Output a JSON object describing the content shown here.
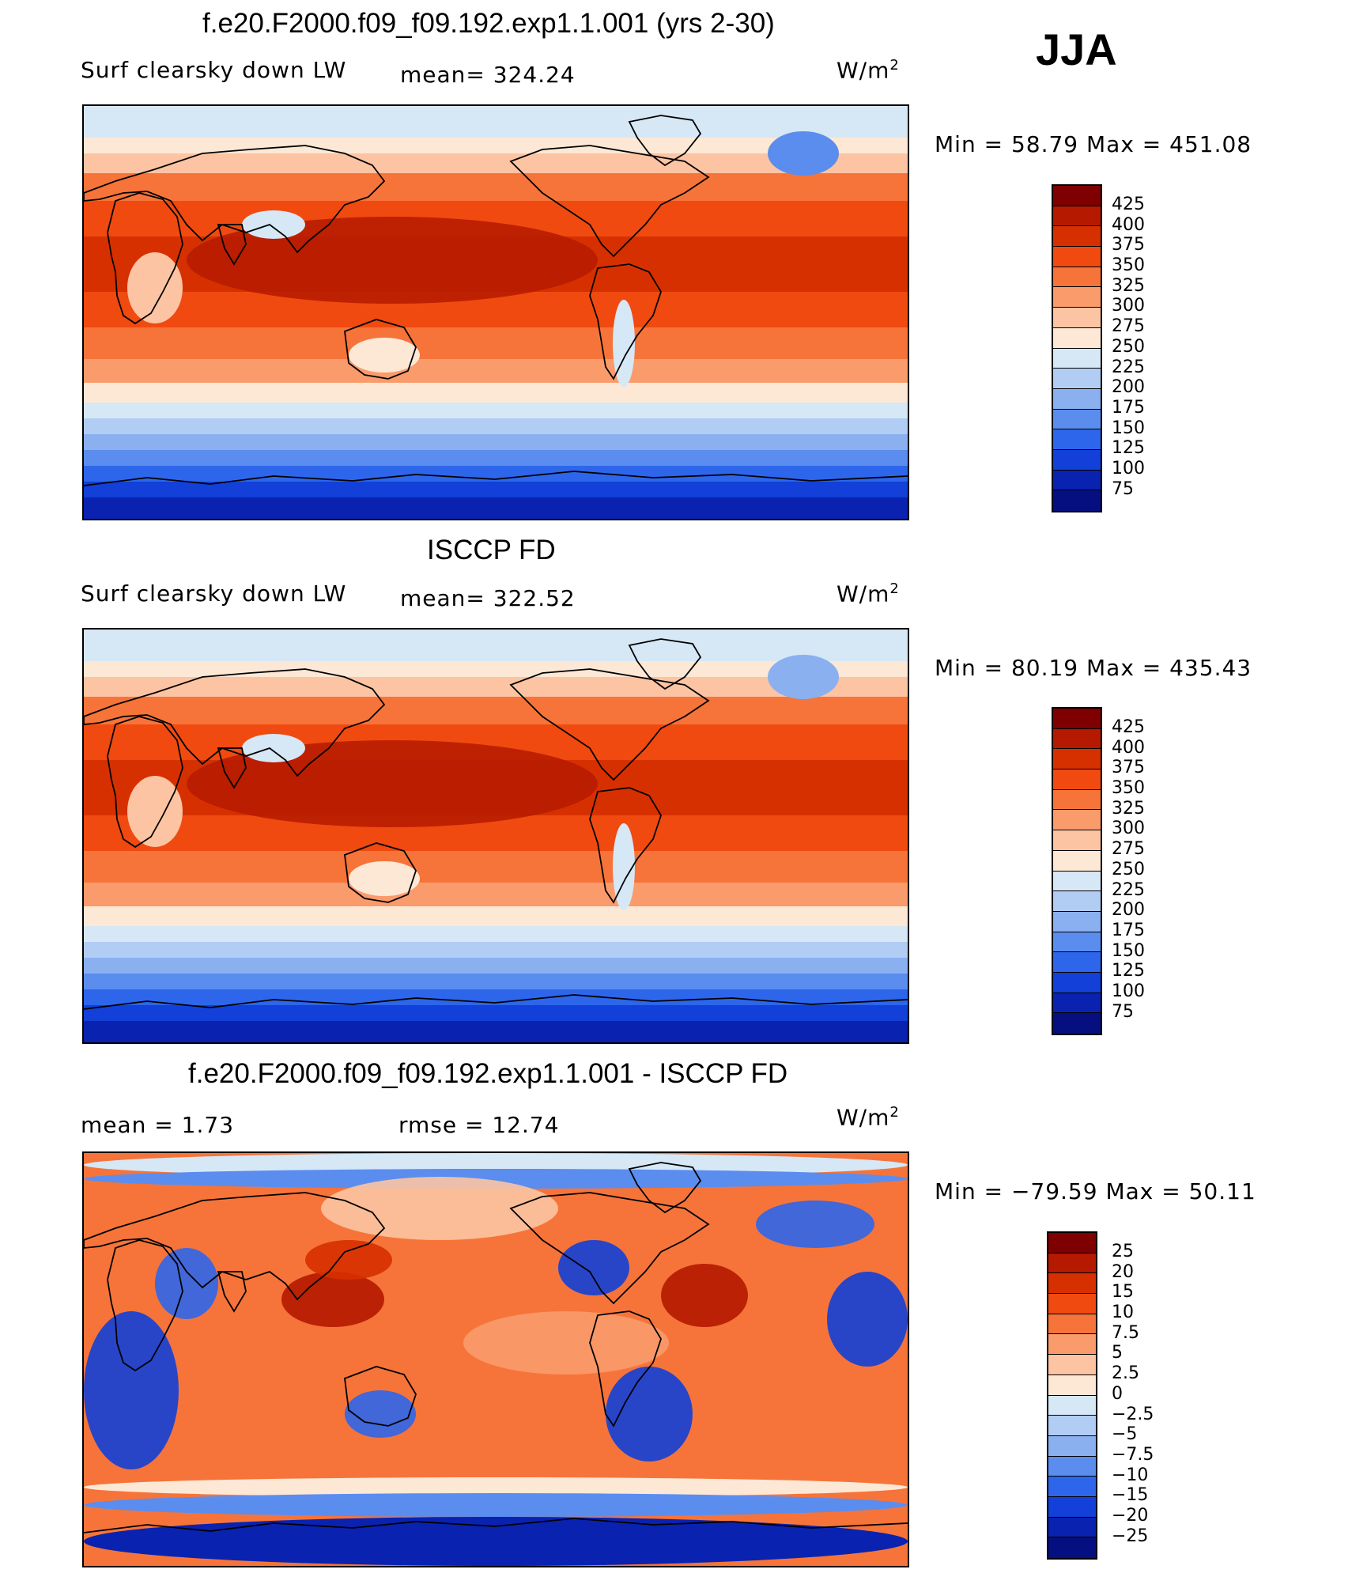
{
  "header": {
    "season": "JJA"
  },
  "units": "W/m",
  "units_sup": "2",
  "panels": [
    {
      "title": "f.e20.F2000.f09_f09.192.exp1.1.001 (yrs 2-30)",
      "variable": "Surf clearsky down LW",
      "stat": "mean= 324.24",
      "minmax": "Min =   58.79 Max = 451.08",
      "colorbar": {
        "labels": [
          "425",
          "400",
          "375",
          "350",
          "325",
          "300",
          "275",
          "250",
          "225",
          "200",
          "175",
          "150",
          "125",
          "100",
          "75"
        ],
        "colors": [
          "#7f0000",
          "#b51a00",
          "#d73000",
          "#f04a10",
          "#f6743a",
          "#fa9b6c",
          "#fcc4a3",
          "#fde8d6",
          "#d6e7f6",
          "#b2cdf3",
          "#8ab0f0",
          "#5b8def",
          "#2d66ea",
          "#1240d8",
          "#0a22b0",
          "#050f80"
        ]
      },
      "fields": {
        "mode": "abs"
      }
    },
    {
      "title": "ISCCP FD",
      "variable": "Surf clearsky down LW",
      "stat": "mean= 322.52",
      "minmax": "Min =   80.19 Max = 435.43",
      "colorbar": {
        "labels": [
          "425",
          "400",
          "375",
          "350",
          "325",
          "300",
          "275",
          "250",
          "225",
          "200",
          "175",
          "150",
          "125",
          "100",
          "75"
        ],
        "colors": [
          "#7f0000",
          "#b51a00",
          "#d73000",
          "#f04a10",
          "#f6743a",
          "#fa9b6c",
          "#fcc4a3",
          "#fde8d6",
          "#d6e7f6",
          "#b2cdf3",
          "#8ab0f0",
          "#5b8def",
          "#2d66ea",
          "#1240d8",
          "#0a22b0",
          "#050f80"
        ]
      },
      "fields": {
        "mode": "abs"
      }
    },
    {
      "title": "f.e20.F2000.f09_f09.192.exp1.1.001 - ISCCP FD",
      "stat_mean": "mean =     1.73",
      "stat_rmse": "rmse =    12.74",
      "minmax": "Min = −79.59 Max =   50.11",
      "colorbar": {
        "labels": [
          "25",
          "20",
          "15",
          "10",
          "7.5",
          "5",
          "2.5",
          "0",
          "−2.5",
          "−5",
          "−7.5",
          "−10",
          "−15",
          "−20",
          "−25"
        ],
        "colors": [
          "#7f0000",
          "#b51a00",
          "#d73000",
          "#f04a10",
          "#f6743a",
          "#fa9b6c",
          "#fcc4a3",
          "#fde8d6",
          "#d6e7f6",
          "#b2cdf3",
          "#8ab0f0",
          "#5b8def",
          "#2d66ea",
          "#1240d8",
          "#0a22b0",
          "#050f80"
        ]
      },
      "fields": {
        "mode": "diff"
      }
    }
  ]
}
